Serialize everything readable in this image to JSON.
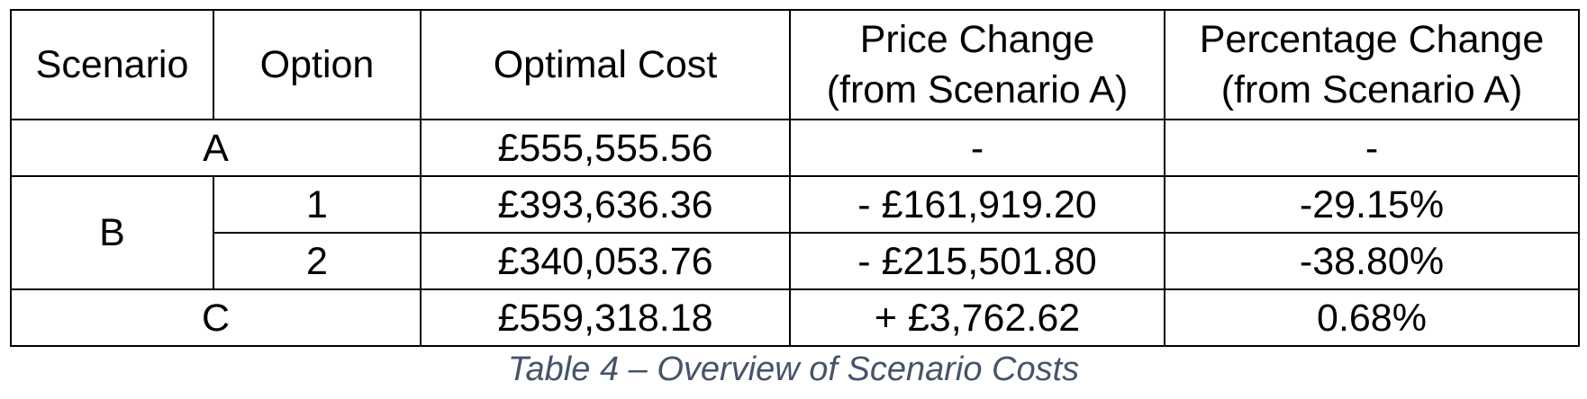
{
  "table": {
    "headers": {
      "scenario": "Scenario",
      "option": "Option",
      "optimal_cost": "Optimal Cost",
      "price_change": "Price Change\n(from Scenario A)",
      "percentage_change": "Percentage Change\n(from Scenario A)"
    },
    "rows": [
      {
        "scenario": "A",
        "option": "",
        "optimal_cost": "£555,555.56",
        "price_change": "-",
        "percentage_change": "-"
      },
      {
        "scenario": "B",
        "option": "1",
        "optimal_cost": "£393,636.36",
        "price_change": "- £161,919.20",
        "percentage_change": "-29.15%"
      },
      {
        "scenario": "B",
        "option": "2",
        "optimal_cost": "£340,053.76",
        "price_change": "- £215,501.80",
        "percentage_change": "-38.80%"
      },
      {
        "scenario": "C",
        "option": "",
        "optimal_cost": "£559,318.18",
        "price_change": "+ £3,762.62",
        "percentage_change": "0.68%"
      }
    ]
  },
  "caption": "Table 4 – Overview of Scenario Costs"
}
